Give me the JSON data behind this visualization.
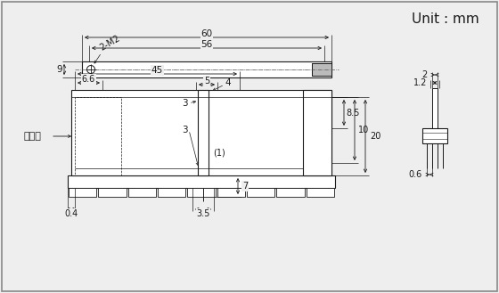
{
  "bg_color": "#eeeeee",
  "line_color": "#1a1a1a",
  "dim_color": "#1a1a1a",
  "title": "Unit : mm",
  "title_fontsize": 11,
  "label_fontsize": 7.5,
  "annotations": {
    "dim_60": "60",
    "dim_56": "56",
    "dim_45": "45",
    "dim_9": "9",
    "dim_6_6": "6.6",
    "dim_5": "5",
    "dim_4": "4",
    "dim_3a": "3",
    "dim_3b": "3",
    "dim_8_5": "8.5",
    "dim_10": "10",
    "dim_20": "20",
    "dim_0_4": "0.4",
    "dim_3_5": "3.5",
    "dim_7": "7",
    "dim_1": "(1)",
    "dim_2M2": "2-M2",
    "dim_2": "2",
    "dim_1_2": "1.2",
    "dim_0_6": "0.6",
    "label_mount": "安装面"
  }
}
